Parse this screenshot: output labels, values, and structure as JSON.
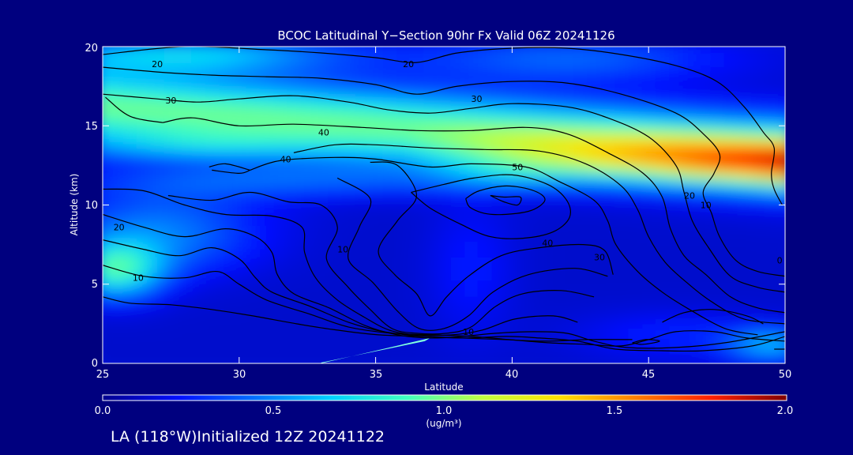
{
  "chart_data": {
    "type": "heatmap",
    "title": "BCOC Latitudinal Y−Section 90hr  Fx Valid 06Z 20241126",
    "xlabel": "Latitude",
    "ylabel": "Altitude (km)",
    "xlim": [
      25,
      50
    ],
    "ylim": [
      0,
      20
    ],
    "x_ticks": [
      "25",
      "30",
      "35",
      "40",
      "45",
      "50"
    ],
    "y_ticks": [
      "0",
      "5",
      "10",
      "15",
      "20"
    ],
    "colorbar": {
      "ticks": [
        "0.0",
        "0.5",
        "1.0",
        "1.5",
        "2.0"
      ],
      "range": [
        0,
        2
      ],
      "unit": "(ug/m³)",
      "colors": [
        "#000090",
        "#0010ff",
        "#0070ff",
        "#00d0ff",
        "#40ffc0",
        "#c0ff40",
        "#ffe000",
        "#ff8000",
        "#ff2000",
        "#800000"
      ]
    },
    "background_color": "#00007f",
    "contour_color": "#000000",
    "contour_labels": [
      {
        "text": "20",
        "lat": 27.0,
        "alt": 18.9
      },
      {
        "text": "20",
        "lat": 36.2,
        "alt": 18.9
      },
      {
        "text": "30",
        "lat": 27.5,
        "alt": 16.6
      },
      {
        "text": "30",
        "lat": 38.7,
        "alt": 16.7
      },
      {
        "text": "40",
        "lat": 33.1,
        "alt": 14.6
      },
      {
        "text": "40",
        "lat": 31.7,
        "alt": 12.9
      },
      {
        "text": "50",
        "lat": 40.2,
        "alt": 12.4
      },
      {
        "text": "20",
        "lat": 25.6,
        "alt": 8.6
      },
      {
        "text": "10",
        "lat": 26.3,
        "alt": 5.4
      },
      {
        "text": "10",
        "lat": 33.8,
        "alt": 7.2
      },
      {
        "text": "40",
        "lat": 41.3,
        "alt": 7.6
      },
      {
        "text": "30",
        "lat": 43.2,
        "alt": 6.7
      },
      {
        "text": "20",
        "lat": 46.5,
        "alt": 10.6
      },
      {
        "text": "10",
        "lat": 47.1,
        "alt": 10.0
      },
      {
        "text": "10",
        "lat": 38.4,
        "alt": 2.0
      },
      {
        "text": "0",
        "lat": 49.8,
        "alt": 6.5
      }
    ],
    "contours": [
      [
        [
          25,
          19.5
        ],
        [
          28,
          20.0
        ],
        [
          31,
          19.8
        ],
        [
          33,
          19.6
        ],
        [
          35,
          19.3
        ],
        [
          36.5,
          19.0
        ],
        [
          38,
          19.6
        ],
        [
          40,
          19.9
        ],
        [
          42,
          19.9
        ],
        [
          44,
          19.5
        ],
        [
          46,
          18.8
        ],
        [
          47.5,
          17.8
        ],
        [
          48.5,
          16.2
        ],
        [
          49.2,
          14.6
        ],
        [
          49.6,
          13.6
        ],
        [
          49.5,
          12.0
        ],
        [
          49.6,
          11.0
        ],
        [
          49.9,
          10.0
        ]
      ],
      [
        [
          25,
          18.7
        ],
        [
          27,
          18.4
        ],
        [
          29,
          18.2
        ],
        [
          31,
          18.1
        ],
        [
          33,
          18.0
        ],
        [
          35,
          17.6
        ],
        [
          36.5,
          17.0
        ],
        [
          38,
          17.5
        ],
        [
          40,
          17.8
        ],
        [
          42,
          17.7
        ],
        [
          44,
          17.0
        ],
        [
          46,
          15.8
        ],
        [
          47,
          14.5
        ],
        [
          47.6,
          13.2
        ],
        [
          47.4,
          12.0
        ],
        [
          47.0,
          10.8
        ],
        [
          47.3,
          9.5
        ],
        [
          47.6,
          8.0
        ],
        [
          48.2,
          6.5
        ],
        [
          49.0,
          5.8
        ],
        [
          50,
          5.5
        ]
      ],
      [
        [
          25,
          17.0
        ],
        [
          27,
          16.7
        ],
        [
          28.5,
          16.5
        ],
        [
          30,
          16.7
        ],
        [
          32,
          16.9
        ],
        [
          34,
          16.5
        ],
        [
          35.5,
          16.0
        ],
        [
          37,
          15.8
        ],
        [
          38.5,
          16.1
        ],
        [
          40,
          16.4
        ],
        [
          42,
          16.2
        ],
        [
          43.5,
          15.5
        ],
        [
          45,
          14.3
        ],
        [
          46,
          12.5
        ],
        [
          46.3,
          10.8
        ],
        [
          46.6,
          9.0
        ],
        [
          47.2,
          7.3
        ],
        [
          48,
          5.5
        ],
        [
          49,
          4.8
        ],
        [
          50,
          4.5
        ]
      ],
      [
        [
          27.2,
          15.2
        ],
        [
          28.3,
          15.5
        ],
        [
          30,
          15.0
        ],
        [
          32,
          15.1
        ],
        [
          34.5,
          14.9
        ],
        [
          36.5,
          14.7
        ],
        [
          38.5,
          14.7
        ],
        [
          40.5,
          14.9
        ],
        [
          42,
          14.5
        ],
        [
          43.5,
          13.3
        ],
        [
          44.8,
          12.0
        ],
        [
          45.5,
          10.5
        ],
        [
          45.8,
          8.5
        ],
        [
          46.3,
          6.8
        ],
        [
          47.1,
          5.6
        ],
        [
          48,
          4.2
        ],
        [
          49,
          3.5
        ],
        [
          50,
          3.2
        ]
      ],
      [
        [
          32,
          13.3
        ],
        [
          33.5,
          13.8
        ],
        [
          35,
          13.8
        ],
        [
          37,
          13.6
        ],
        [
          39,
          13.5
        ],
        [
          41,
          13.4
        ],
        [
          42.7,
          12.6
        ],
        [
          44,
          11.2
        ],
        [
          44.6,
          9.7
        ],
        [
          45.0,
          8.0
        ],
        [
          45.6,
          6.4
        ],
        [
          46.4,
          5.1
        ],
        [
          47.3,
          3.9
        ],
        [
          48.5,
          2.8
        ],
        [
          50,
          2.5
        ]
      ],
      [
        [
          30.4,
          12.2
        ],
        [
          31.5,
          12.8
        ],
        [
          33.5,
          13.0
        ],
        [
          35,
          12.9
        ],
        [
          37,
          12.4
        ],
        [
          38.5,
          12.6
        ],
        [
          40.5,
          12.4
        ],
        [
          41.7,
          11.5
        ],
        [
          43,
          10.3
        ],
        [
          43.5,
          9.0
        ],
        [
          43.8,
          7.5
        ],
        [
          44.6,
          5.8
        ],
        [
          45.5,
          4.5
        ],
        [
          46.5,
          3.4
        ],
        [
          47.8,
          2.2
        ],
        [
          49,
          1.8
        ]
      ],
      [
        [
          36.3,
          10.8
        ],
        [
          37.5,
          11.3
        ],
        [
          38.6,
          11.7
        ],
        [
          40,
          11.9
        ],
        [
          41.3,
          11.3
        ],
        [
          42.0,
          10.3
        ],
        [
          42.1,
          9.2
        ],
        [
          41.5,
          8.3
        ],
        [
          40.4,
          7.9
        ],
        [
          39.2,
          8.0
        ],
        [
          38.1,
          8.8
        ],
        [
          37.0,
          9.8
        ],
        [
          36.3,
          10.8
        ]
      ],
      [
        [
          38.3,
          10.4
        ],
        [
          38.8,
          10.9
        ],
        [
          39.8,
          11.2
        ],
        [
          40.8,
          10.9
        ],
        [
          41.2,
          10.3
        ],
        [
          40.6,
          9.6
        ],
        [
          39.3,
          9.4
        ],
        [
          38.5,
          9.8
        ],
        [
          38.3,
          10.4
        ]
      ],
      [
        [
          39.2,
          10.6
        ],
        [
          39.7,
          10.5
        ],
        [
          40.3,
          10.5
        ],
        [
          40.2,
          10.0
        ],
        [
          39.7,
          10.2
        ],
        [
          39.2,
          10.6
        ]
      ],
      [
        [
          25.1,
          16.8
        ],
        [
          26.0,
          15.6
        ],
        [
          27.2,
          15.2
        ]
      ],
      [
        [
          29.0,
          12.2
        ],
        [
          30.0,
          12.0
        ],
        [
          30.4,
          12.2
        ]
      ],
      [
        [
          28.9,
          12.4
        ],
        [
          29.5,
          12.6
        ],
        [
          30.4,
          12.2
        ]
      ],
      [
        [
          34.8,
          12.7
        ],
        [
          35.8,
          12.5
        ],
        [
          36.5,
          10.6
        ],
        [
          35.8,
          9.0
        ],
        [
          35.1,
          7.1
        ],
        [
          35.7,
          5.6
        ],
        [
          36.5,
          4.4
        ],
        [
          37.0,
          3.0
        ],
        [
          37.6,
          4.2
        ],
        [
          38.4,
          5.5
        ],
        [
          39.6,
          6.8
        ],
        [
          41.0,
          7.3
        ],
        [
          42.6,
          7.5
        ],
        [
          43.4,
          7.1
        ],
        [
          43.7,
          5.6
        ]
      ],
      [
        [
          33.6,
          11.7
        ],
        [
          34.8,
          10.4
        ],
        [
          34.4,
          8.6
        ],
        [
          34.0,
          6.6
        ],
        [
          34.9,
          5.1
        ],
        [
          35.8,
          3.3
        ],
        [
          36.6,
          2.2
        ],
        [
          37.5,
          2.2
        ],
        [
          38.4,
          3.0
        ],
        [
          39.3,
          4.5
        ],
        [
          40.6,
          5.6
        ],
        [
          42.3,
          6.0
        ],
        [
          43.5,
          5.5
        ]
      ],
      [
        [
          27.4,
          10.6
        ],
        [
          29.0,
          10.3
        ],
        [
          30.4,
          10.8
        ],
        [
          31.8,
          10.2
        ],
        [
          33.0,
          10.0
        ],
        [
          33.6,
          8.6
        ],
        [
          33.2,
          6.6
        ],
        [
          34.0,
          4.8
        ],
        [
          34.8,
          3.4
        ],
        [
          35.6,
          2.2
        ],
        [
          36.5,
          1.9
        ],
        [
          37.6,
          1.9
        ],
        [
          38.5,
          2.3
        ],
        [
          39.4,
          3.6
        ],
        [
          40.4,
          4.4
        ],
        [
          41.8,
          4.6
        ],
        [
          43.0,
          4.2
        ]
      ],
      [
        [
          25,
          11.0
        ],
        [
          26.5,
          10.9
        ],
        [
          28,
          10.0
        ],
        [
          29.5,
          9.4
        ],
        [
          31.2,
          9.3
        ],
        [
          32.3,
          8.6
        ],
        [
          32.4,
          7.0
        ],
        [
          32.8,
          5.4
        ],
        [
          33.6,
          4.0
        ],
        [
          34.6,
          2.9
        ],
        [
          35.5,
          2.1
        ],
        [
          36.5,
          1.8
        ],
        [
          37.8,
          1.8
        ],
        [
          38.9,
          2.1
        ],
        [
          40.1,
          2.8
        ],
        [
          41.5,
          3.0
        ],
        [
          42.4,
          2.6
        ]
      ],
      [
        [
          25,
          9.4
        ],
        [
          26.5,
          8.6
        ],
        [
          28,
          8.0
        ],
        [
          29.5,
          8.5
        ],
        [
          30.6,
          8.0
        ],
        [
          31.2,
          7.0
        ],
        [
          31.4,
          5.6
        ],
        [
          32.0,
          4.4
        ],
        [
          33.3,
          3.5
        ],
        [
          34.6,
          2.4
        ],
        [
          35.8,
          1.8
        ],
        [
          37.0,
          1.6
        ],
        [
          38.2,
          1.7
        ],
        [
          39.4,
          1.9
        ],
        [
          40.8,
          2.0
        ],
        [
          42.0,
          1.9
        ],
        [
          43.0,
          1.4
        ],
        [
          44.2,
          1.0
        ],
        [
          46.0,
          1.0
        ],
        [
          47.8,
          1.3
        ],
        [
          50,
          2.0
        ]
      ],
      [
        [
          25,
          7.8
        ],
        [
          26.5,
          7.2
        ],
        [
          27.8,
          6.8
        ],
        [
          29.0,
          7.3
        ],
        [
          30.0,
          6.6
        ],
        [
          30.6,
          5.4
        ],
        [
          31.2,
          4.5
        ],
        [
          32.6,
          3.6
        ],
        [
          34.0,
          2.6
        ],
        [
          35.3,
          2.0
        ],
        [
          36.8,
          1.7
        ],
        [
          38.2,
          1.6
        ],
        [
          39.8,
          1.7
        ],
        [
          41.0,
          1.6
        ],
        [
          42.4,
          1.4
        ],
        [
          43.8,
          0.9
        ],
        [
          45.5,
          0.8
        ],
        [
          47.0,
          0.8
        ],
        [
          48.8,
          1.1
        ],
        [
          50,
          1.7
        ]
      ],
      [
        [
          25,
          6.2
        ],
        [
          26.5,
          5.5
        ],
        [
          28.0,
          5.4
        ],
        [
          29.2,
          5.8
        ],
        [
          30.0,
          5.0
        ],
        [
          31.0,
          4.0
        ],
        [
          32.6,
          3.1
        ],
        [
          34.0,
          2.3
        ],
        [
          35.6,
          1.9
        ],
        [
          37.1,
          1.8
        ],
        [
          38.5,
          1.7
        ],
        [
          39.9,
          1.5
        ],
        [
          41.3,
          1.3
        ],
        [
          42.7,
          1.2
        ],
        [
          44.0,
          1.1
        ],
        [
          45.0,
          1.5
        ],
        [
          46.0,
          2.0
        ],
        [
          47.4,
          2.0
        ],
        [
          48.6,
          1.6
        ],
        [
          50,
          1.4
        ]
      ],
      [
        [
          25,
          4.2
        ],
        [
          26.0,
          3.8
        ],
        [
          27.5,
          3.7
        ],
        [
          29.0,
          3.4
        ],
        [
          30.5,
          3.0
        ],
        [
          32.1,
          2.5
        ],
        [
          33.6,
          2.1
        ],
        [
          35.1,
          1.8
        ],
        [
          36.7,
          1.7
        ],
        [
          38.2,
          1.6
        ],
        [
          39.7,
          1.5
        ],
        [
          41.2,
          1.4
        ],
        [
          42.8,
          1.5
        ],
        [
          44.4,
          1.5
        ]
      ],
      [
        [
          45.5,
          2.6
        ],
        [
          46.3,
          3.2
        ],
        [
          47.4,
          3.4
        ],
        [
          48.6,
          3.0
        ],
        [
          49.2,
          2.5
        ]
      ],
      [
        [
          44.4,
          1.3
        ],
        [
          44.9,
          1.5
        ],
        [
          45.4,
          1.4
        ],
        [
          44.8,
          1.2
        ],
        [
          44.4,
          1.3
        ]
      ],
      [
        [
          49.6,
          0.9
        ],
        [
          49.8,
          0.9
        ],
        [
          50,
          0.9
        ]
      ]
    ]
  },
  "footer_text": "LA (118°W)Initialized 12Z 20241122"
}
